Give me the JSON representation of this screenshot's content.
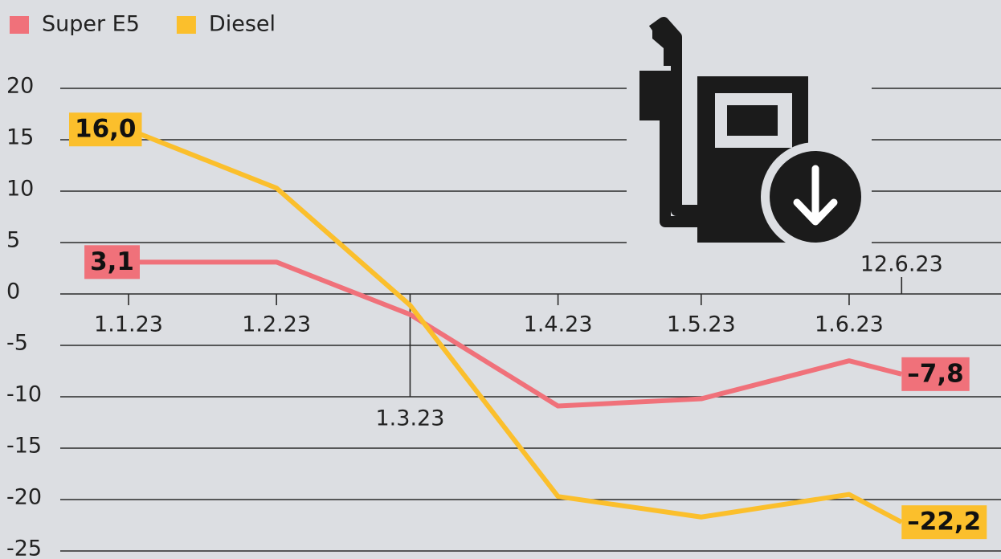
{
  "chart_data": {
    "type": "line",
    "x": [
      "1.1.23",
      "1.2.23",
      "1.3.23",
      "1.4.23",
      "1.5.23",
      "1.6.23",
      "12.6.23"
    ],
    "series": [
      {
        "name": "Super E5",
        "color": "#f0717a",
        "values": [
          3.1,
          3.1,
          -2.0,
          -10.9,
          -10.2,
          -6.5,
          -7.8
        ],
        "value_labels": [
          "3,1",
          null,
          null,
          null,
          null,
          null,
          "–7,8"
        ]
      },
      {
        "name": "Diesel",
        "color": "#fbbf2c",
        "values": [
          16.0,
          10.3,
          -1.1,
          -19.7,
          -21.7,
          -19.5,
          -22.2
        ],
        "value_labels": [
          "16,0",
          null,
          null,
          null,
          null,
          null,
          "–22,2"
        ]
      }
    ],
    "ylim": [
      -25,
      20
    ],
    "yticks": [
      20,
      15,
      10,
      5,
      0,
      -5,
      -10,
      -15,
      -20,
      -25
    ],
    "grid": true
  }
}
